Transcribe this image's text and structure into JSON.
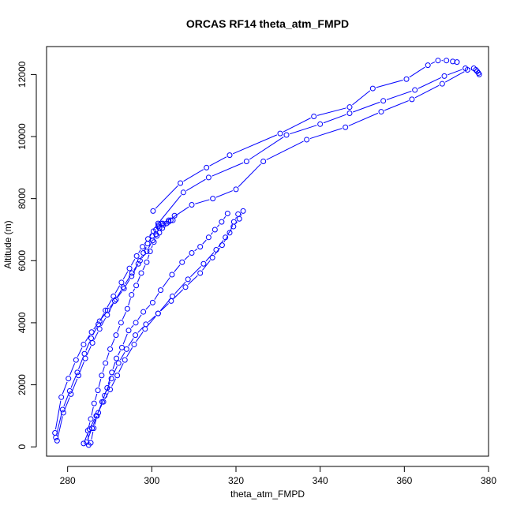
{
  "chart_data": {
    "type": "line",
    "title": "ORCAS RF14 theta_atm_FMPD",
    "xlabel": "theta_atm_FMPD",
    "ylabel": "Altitude (m)",
    "xlim": [
      275,
      380
    ],
    "ylim": [
      -300,
      12900
    ],
    "xticks": [
      280,
      300,
      320,
      340,
      360,
      380
    ],
    "yticks": [
      0,
      2000,
      4000,
      6000,
      8000,
      10000,
      12000
    ],
    "grid": false,
    "legend": "none",
    "marker": "open-circle",
    "line_style": "line-with-gaps",
    "series_color": "#0000ff",
    "series": [
      {
        "x": [
          285.0,
          284.8,
          285.5,
          286.3,
          287.2,
          288.1,
          289.0,
          290.1,
          291.5,
          292.7,
          294.2,
          295.2,
          296.3,
          297.5,
          298.8,
          299.6,
          300.5,
          301.2,
          301.8,
          302.5,
          303.5,
          304.5,
          305.4
        ],
        "y": [
          60,
          520,
          900,
          1400,
          1820,
          2300,
          2700,
          3150,
          3600,
          4000,
          4450,
          4900,
          5200,
          5600,
          5950,
          6300,
          6600,
          6800,
          6900,
          7050,
          7200,
          7300,
          7450
        ]
      },
      {
        "x": [
          285.5,
          286.2,
          287.0,
          288.2,
          289.4,
          290.5,
          291.6,
          292.9,
          294.5,
          296.2,
          298.0,
          300.2,
          302.1,
          304.8,
          307.2,
          309.5,
          311.5,
          313.5,
          315.0,
          316.6,
          318.0
        ],
        "y": [
          130,
          600,
          1000,
          1450,
          1900,
          2400,
          2850,
          3200,
          3750,
          4000,
          4350,
          4650,
          5050,
          5550,
          5950,
          6250,
          6450,
          6750,
          7000,
          7250,
          7520
        ]
      },
      {
        "x": [
          284.5,
          285.8,
          287.3,
          288.8,
          290.4,
          292.1,
          294.0,
          296.1,
          298.6,
          301.5,
          304.6,
          308.0,
          311.5,
          314.4,
          316.7,
          318.5,
          319.5,
          320.5
        ],
        "y": [
          150,
          600,
          1100,
          1650,
          2200,
          2700,
          3150,
          3600,
          3950,
          4300,
          4700,
          5150,
          5600,
          6100,
          6500,
          6900,
          7250,
          7500
        ]
      },
      {
        "x": [
          283.8,
          285.2,
          286.8,
          288.5,
          290.1,
          291.8,
          293.6,
          295.8,
          298.4,
          301.5,
          304.9,
          308.6,
          312.3,
          315.3,
          317.5,
          319.4,
          320.8,
          321.7
        ],
        "y": [
          110,
          570,
          1000,
          1450,
          1850,
          2300,
          2800,
          3300,
          3800,
          4300,
          4850,
          5400,
          5900,
          6350,
          6750,
          7100,
          7350,
          7600
        ]
      },
      {
        "x": [
          277.5,
          279.0,
          280.8,
          282.6,
          284.2,
          285.9,
          287.6,
          289.4,
          291.2,
          293.2,
          295.3,
          297.2,
          298.8,
          300.2,
          301.0,
          301.8,
          302.8,
          304.0,
          305.0
        ],
        "y": [
          200,
          1100,
          1700,
          2300,
          2850,
          3350,
          3800,
          4250,
          4700,
          5150,
          5600,
          6000,
          6300,
          6650,
          6850,
          7050,
          7150,
          7250,
          7300
        ]
      },
      {
        "x": [
          277.2,
          278.8,
          280.5,
          282.3,
          284.0,
          285.6,
          287.3,
          289.0,
          290.9,
          292.8,
          294.7,
          296.4,
          297.8,
          299.1,
          300.4,
          301.5,
          302.6
        ],
        "y": [
          300,
          1200,
          1800,
          2400,
          3000,
          3500,
          3950,
          4400,
          4850,
          5300,
          5750,
          6150,
          6450,
          6700,
          6950,
          7100,
          7200
        ]
      },
      {
        "x": [
          277.0,
          278.5,
          280.2,
          282.0,
          283.8,
          285.7,
          287.6,
          289.5,
          291.5,
          293.4,
          295.2,
          296.8,
          298.0,
          299.0,
          300.1,
          301.0,
          301.6,
          302.2
        ],
        "y": [
          450,
          1600,
          2200,
          2800,
          3300,
          3700,
          4050,
          4400,
          4750,
          5100,
          5500,
          5900,
          6250,
          6550,
          6800,
          7000,
          7150,
          7200
        ]
      },
      {
        "x": [
          300.3,
          306.8,
          313.0,
          318.5,
          330.5,
          338.5,
          347.0,
          352.5,
          360.5,
          365.6,
          368.0,
          370.0,
          371.5,
          372.5
        ],
        "y": [
          7600,
          8500,
          9000,
          9400,
          10100,
          10650,
          10950,
          11550,
          11850,
          12300,
          12450,
          12450,
          12420,
          12400
        ]
      },
      {
        "x": [
          301.5,
          307.5,
          313.5,
          322.5,
          332.0,
          340.0,
          347.0,
          355.0,
          362.5,
          369.5,
          374.5,
          376.5,
          377.3,
          377.8
        ],
        "y": [
          7200,
          8200,
          8680,
          9200,
          10050,
          10400,
          10750,
          11150,
          11500,
          11950,
          12200,
          12200,
          12100,
          12000
        ]
      },
      {
        "x": [
          304.0,
          309.5,
          314.5,
          320.0,
          326.5,
          336.8,
          346.0,
          354.5,
          361.8,
          369.0,
          375.0,
          377.0,
          377.6
        ],
        "y": [
          7300,
          7800,
          8000,
          8300,
          9200,
          9900,
          10300,
          10800,
          11200,
          11700,
          12150,
          12150,
          12050
        ]
      }
    ]
  }
}
